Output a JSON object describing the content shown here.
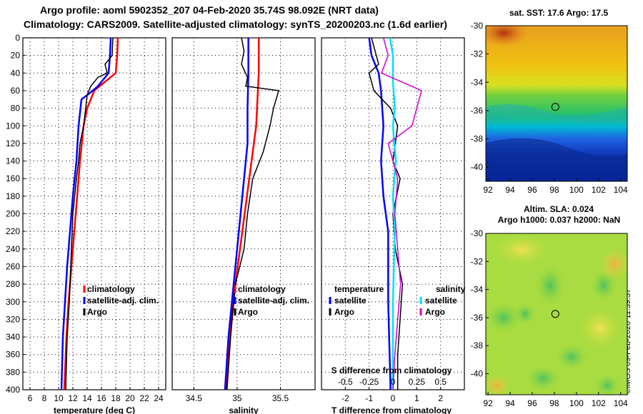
{
  "header": {
    "title_line1": "Argo profile: aoml 5902352_207 04-Feb-2020 35.74S 98.092E (NRT data)",
    "title_line2": "Climatology: CARS2009. Satellite-adjusted climatology: synTS_20200203.nc (1.6d earlier)"
  },
  "maps": {
    "sst_title": "sat. SST: 17.6 Argo: 17.5",
    "sla_title_line1": "Altim. SLA: 0.024",
    "sla_title_line2": "Argo h1000: 0.037 h2000: NaN",
    "lon_ticks": [
      "92",
      "94",
      "96",
      "98",
      "100",
      "102",
      "104"
    ],
    "lat_ticks": [
      "-30",
      "-32",
      "-34",
      "-36",
      "-38",
      "-40"
    ],
    "marker": {
      "lon": 98.09,
      "lat": -35.74
    }
  },
  "credit": "©IMOS 09-Feb-2020 11:39:37",
  "colors": {
    "climatology": "#ff0000",
    "satellite": "#0000ff",
    "argo": "#000000",
    "sat_salinity": "#00e0ff",
    "argo_salinity": "#d000d0"
  },
  "chart_data": [
    {
      "type": "line",
      "id": "temperature",
      "xlabel": "temperature (deg C)",
      "ylabel": "",
      "xlim": [
        5,
        25
      ],
      "ylim": [
        400,
        0
      ],
      "xticks": [
        "6",
        "8",
        "10",
        "12",
        "14",
        "16",
        "18",
        "20",
        "22",
        "24"
      ],
      "yticks": [
        "0",
        "20",
        "40",
        "60",
        "80",
        "100",
        "120",
        "140",
        "160",
        "180",
        "200",
        "220",
        "240",
        "260",
        "280",
        "300",
        "320",
        "340",
        "360",
        "380",
        "400"
      ],
      "legend": [
        "climatology",
        "satellite-adj. clim.",
        "Argo"
      ],
      "series": [
        {
          "name": "climatology",
          "color": "#ff0000",
          "points": [
            [
              18.3,
              0
            ],
            [
              18.2,
              20
            ],
            [
              18.0,
              40
            ],
            [
              16.5,
              50
            ],
            [
              15.0,
              60
            ],
            [
              14.0,
              80
            ],
            [
              13.5,
              100
            ],
            [
              13.0,
              140
            ],
            [
              12.6,
              180
            ],
            [
              12.2,
              220
            ],
            [
              11.8,
              260
            ],
            [
              11.4,
              300
            ],
            [
              11.1,
              340
            ],
            [
              10.8,
              400
            ]
          ]
        },
        {
          "name": "satellite-adj. clim.",
          "color": "#0000ff",
          "points": [
            [
              17.3,
              0
            ],
            [
              17.2,
              20
            ],
            [
              17.0,
              40
            ],
            [
              15.5,
              55
            ],
            [
              14.5,
              62
            ],
            [
              13.2,
              70
            ],
            [
              12.8,
              100
            ],
            [
              12.5,
              140
            ],
            [
              12.0,
              180
            ],
            [
              11.6,
              220
            ],
            [
              11.2,
              260
            ],
            [
              10.9,
              300
            ],
            [
              10.6,
              340
            ],
            [
              10.4,
              400
            ]
          ]
        },
        {
          "name": "Argo",
          "color": "#000000",
          "points": [
            [
              17.6,
              0
            ],
            [
              17.5,
              20
            ],
            [
              16.5,
              30
            ],
            [
              16.8,
              40
            ],
            [
              15.5,
              45
            ],
            [
              15.0,
              50
            ],
            [
              14.5,
              55
            ],
            [
              14.0,
              65
            ],
            [
              13.8,
              80
            ],
            [
              13.5,
              100
            ],
            [
              13.0,
              120
            ],
            [
              12.8,
              140
            ],
            [
              12.5,
              160
            ],
            [
              12.0,
              200
            ],
            [
              11.8,
              240
            ],
            [
              11.5,
              300
            ],
            [
              11.2,
              340
            ],
            [
              11.0,
              400
            ]
          ]
        }
      ]
    },
    {
      "type": "line",
      "id": "salinity",
      "xlabel": "salinity",
      "ylabel": "",
      "xlim": [
        34.25,
        35.9
      ],
      "ylim": [
        400,
        0
      ],
      "xticks": [
        "34.5",
        "35",
        "35.5"
      ],
      "legend": [
        "climatology",
        "satellite-adj. clim.",
        "Argo"
      ],
      "series": [
        {
          "name": "climatology",
          "color": "#ff0000",
          "points": [
            [
              35.25,
              0
            ],
            [
              35.25,
              40
            ],
            [
              35.22,
              100
            ],
            [
              35.14,
              160
            ],
            [
              35.06,
              220
            ],
            [
              34.98,
              280
            ],
            [
              34.92,
              340
            ],
            [
              34.88,
              400
            ]
          ]
        },
        {
          "name": "satellite-adj. clim.",
          "color": "#0000ff",
          "points": [
            [
              35.13,
              0
            ],
            [
              35.13,
              40
            ],
            [
              35.12,
              80
            ],
            [
              35.12,
              120
            ],
            [
              35.08,
              160
            ],
            [
              35.02,
              220
            ],
            [
              34.96,
              280
            ],
            [
              34.9,
              340
            ],
            [
              34.86,
              400
            ]
          ]
        },
        {
          "name": "Argo",
          "color": "#000000",
          "points": [
            [
              35.05,
              0
            ],
            [
              35.08,
              15
            ],
            [
              35.05,
              30
            ],
            [
              35.12,
              45
            ],
            [
              35.1,
              55
            ],
            [
              35.48,
              60
            ],
            [
              35.42,
              80
            ],
            [
              35.38,
              100
            ],
            [
              35.3,
              130
            ],
            [
              35.18,
              160
            ],
            [
              35.12,
              200
            ],
            [
              35.08,
              240
            ],
            [
              34.98,
              280
            ],
            [
              34.94,
              320
            ],
            [
              34.91,
              360
            ],
            [
              34.88,
              400
            ]
          ]
        }
      ]
    },
    {
      "type": "line",
      "id": "difference",
      "xlabel": "T difference from climatology",
      "xlabel2": "S difference from climatology",
      "xlim": [
        -3,
        3
      ],
      "ylim": [
        400,
        0
      ],
      "xticks": [
        "-2",
        "-1",
        "0",
        "1",
        "2"
      ],
      "xticks_s": [
        "-0.5",
        "-0.25",
        "0",
        "0.25",
        "0.5"
      ],
      "legend_headers": [
        "temperature",
        "salinity"
      ],
      "legend_left": [
        "satellite",
        "Argo"
      ],
      "legend_right": [
        "satellite",
        "Argo"
      ],
      "series": [
        {
          "name": "T satellite",
          "color": "#0000ff",
          "points": [
            [
              -1.0,
              0
            ],
            [
              -0.9,
              20
            ],
            [
              -0.6,
              40
            ],
            [
              -0.5,
              60
            ],
            [
              -0.4,
              100
            ],
            [
              -0.5,
              140
            ],
            [
              -0.4,
              180
            ],
            [
              -0.2,
              220
            ],
            [
              -0.2,
              300
            ],
            [
              -0.1,
              400
            ]
          ]
        },
        {
          "name": "T Argo",
          "color": "#000000",
          "points": [
            [
              -0.9,
              0
            ],
            [
              -0.6,
              30
            ],
            [
              -1.0,
              40
            ],
            [
              -0.8,
              60
            ],
            [
              -0.1,
              80
            ],
            [
              0.2,
              100
            ],
            [
              0.0,
              140
            ],
            [
              0.3,
              160
            ],
            [
              0.0,
              200
            ],
            [
              0.1,
              240
            ],
            [
              0.4,
              280
            ],
            [
              0.3,
              320
            ],
            [
              0.2,
              360
            ],
            [
              0.2,
              400
            ]
          ]
        },
        {
          "name": "S satellite",
          "color": "#00e0ff",
          "points": [
            [
              -0.03,
              0
            ],
            [
              0.0,
              20
            ],
            [
              0.0,
              50
            ],
            [
              0.02,
              80
            ],
            [
              0.0,
              100
            ],
            [
              0.03,
              140
            ],
            [
              0.0,
              180
            ],
            [
              0.02,
              220
            ],
            [
              0.0,
              300
            ],
            [
              0.0,
              400
            ]
          ]
        },
        {
          "name": "S Argo",
          "color": "#d000d0",
          "points": [
            [
              -0.1,
              0
            ],
            [
              -0.05,
              20
            ],
            [
              -0.12,
              40
            ],
            [
              0.3,
              60
            ],
            [
              0.25,
              80
            ],
            [
              0.2,
              100
            ],
            [
              -0.05,
              120
            ],
            [
              0.05,
              160
            ],
            [
              0.02,
              200
            ],
            [
              0.05,
              240
            ],
            [
              0.08,
              280
            ],
            [
              0.05,
              320
            ],
            [
              0.02,
              360
            ],
            [
              0.0,
              400
            ]
          ]
        }
      ]
    }
  ]
}
